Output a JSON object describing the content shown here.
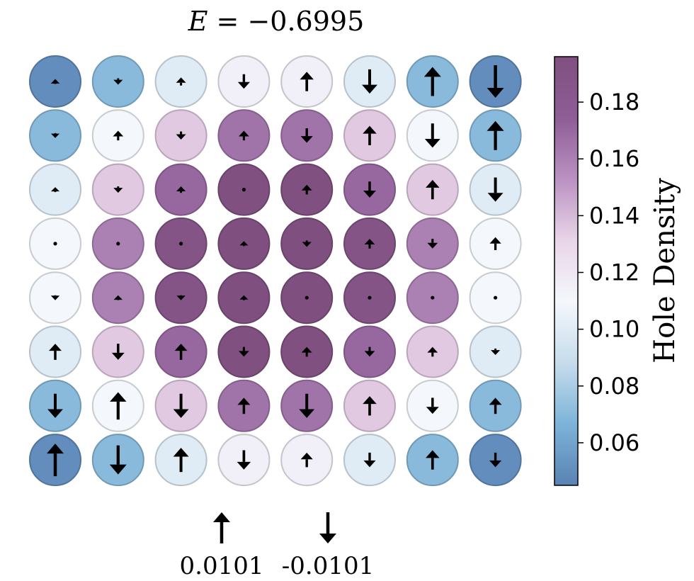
{
  "chart_data": {
    "type": "heatmap",
    "title": {
      "symbol": "E",
      "text": "= −0.6995"
    },
    "grid_size": [
      8,
      8
    ],
    "hole_density": [
      [
        0.05,
        0.07,
        0.1,
        0.115,
        0.115,
        0.1,
        0.07,
        0.05
      ],
      [
        0.07,
        0.11,
        0.135,
        0.165,
        0.165,
        0.135,
        0.11,
        0.07
      ],
      [
        0.1,
        0.135,
        0.17,
        0.195,
        0.195,
        0.17,
        0.135,
        0.1
      ],
      [
        0.11,
        0.16,
        0.19,
        0.2,
        0.2,
        0.19,
        0.16,
        0.11
      ],
      [
        0.11,
        0.16,
        0.19,
        0.2,
        0.2,
        0.19,
        0.16,
        0.11
      ],
      [
        0.1,
        0.135,
        0.17,
        0.195,
        0.195,
        0.17,
        0.135,
        0.1
      ],
      [
        0.07,
        0.11,
        0.135,
        0.165,
        0.165,
        0.135,
        0.11,
        0.07
      ],
      [
        0.05,
        0.07,
        0.1,
        0.115,
        0.115,
        0.1,
        0.07,
        0.05
      ]
    ],
    "spin": [
      [
        0.0015,
        -0.002,
        0.0025,
        -0.0045,
        0.006,
        -0.0075,
        0.009,
        -0.0101
      ],
      [
        -0.0012,
        0.003,
        -0.0025,
        0.003,
        -0.0045,
        0.006,
        -0.0075,
        0.009
      ],
      [
        0.001,
        -0.002,
        0.002,
        0.0,
        0.003,
        -0.005,
        0.006,
        -0.0075
      ],
      [
        0.0,
        0.0,
        0.0,
        0.001,
        -0.002,
        0.003,
        -0.003,
        0.004
      ],
      [
        -0.0015,
        0.0015,
        -0.0015,
        0.001,
        0.0,
        0.0,
        0.0,
        0.0
      ],
      [
        0.005,
        -0.005,
        0.005,
        -0.003,
        0.003,
        -0.003,
        0.003,
        -0.002
      ],
      [
        -0.0075,
        0.0085,
        -0.0075,
        0.005,
        -0.0075,
        0.006,
        -0.005,
        0.005
      ],
      [
        0.0101,
        -0.009,
        0.0075,
        -0.006,
        0.0045,
        -0.0045,
        0.006,
        -0.0045
      ]
    ],
    "colorbar": {
      "label": "Hole Density",
      "range": [
        0.045,
        0.196
      ],
      "ticks": [
        0.06,
        0.08,
        0.1,
        0.12,
        0.14,
        0.16,
        0.18
      ],
      "tick_labels": [
        "0.06",
        "0.08",
        "0.10",
        "0.12",
        "0.14",
        "0.16",
        "0.18"
      ],
      "colors": [
        "#5a82b3",
        "#7db3d9",
        "#c6dcec",
        "#f4f7fc",
        "#e9d5e8",
        "#ba91c2",
        "#8e5d96",
        "#7f507f"
      ]
    },
    "legend": [
      {
        "direction": "up",
        "label": "0.0101"
      },
      {
        "direction": "down",
        "label": "-0.0101"
      }
    ]
  }
}
